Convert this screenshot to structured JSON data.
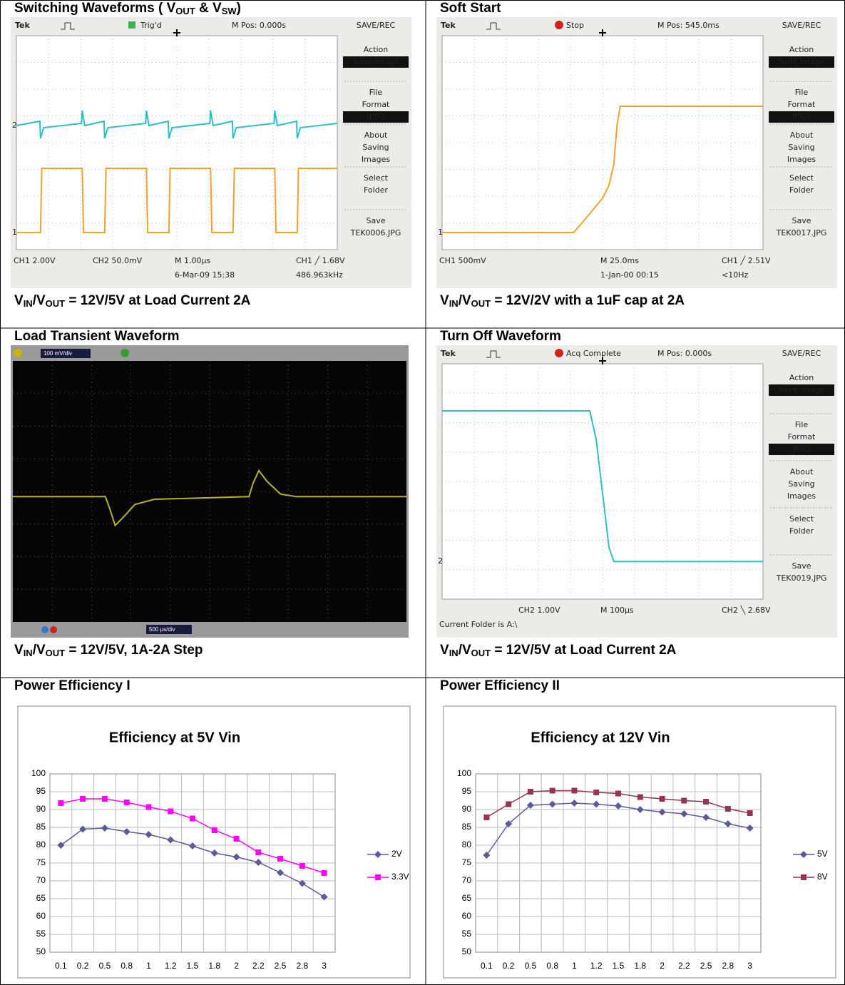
{
  "cells": [
    {
      "title": [
        "Switching Waveforms ( V",
        "OUT",
        " & V",
        "SW",
        ")"
      ],
      "caption": [
        "V",
        "IN",
        "/V",
        "OUT",
        " = 12V/5V at Load Current 2A"
      ],
      "scope": {
        "brand": "Tek",
        "status": "Trig'd",
        "mpos": "M Pos: 0.000s",
        "menu_title": "SAVE/REC",
        "menu": [
          [
            "Action",
            "Save Image"
          ],
          [
            "File",
            "Format",
            "JPEG"
          ],
          [
            "About",
            "Saving",
            "Images"
          ],
          [
            "Select",
            "Folder"
          ],
          [
            "Save",
            "TEK0006.JPG"
          ]
        ],
        "markers": [
          "2",
          "1"
        ],
        "footer": {
          "ch1": "CH1  2.00V",
          "ch2": "CH2  50.0mV",
          "timebase": "M 1.00µs",
          "date": "6-Mar-09 15:38",
          "trigger": "CH1  ╱  1.68V",
          "freq": "486.963kHz"
        }
      }
    },
    {
      "title": [
        "Soft Start"
      ],
      "caption": [
        "V",
        "IN",
        "/V",
        "OUT",
        " = 12V/2V with a 1uF cap at 2A"
      ],
      "scope": {
        "brand": "Tek",
        "status": "Stop",
        "mpos": "M Pos: 545.0ms",
        "menu_title": "SAVE/REC",
        "menu": [
          [
            "Action",
            "Save Image"
          ],
          [
            "File",
            "Format",
            "JPEG"
          ],
          [
            "About",
            "Saving",
            "Images"
          ],
          [
            "Select",
            "Folder"
          ],
          [
            "Save",
            "TEK0017.JPG"
          ]
        ],
        "markers": [
          "1"
        ],
        "footer": {
          "ch1": "CH1  500mV",
          "timebase": "M 25.0ms",
          "date": "1-Jan-00 00:15",
          "trigger": "CH1  ╱  2.51V",
          "freq": "<10Hz"
        }
      }
    },
    {
      "title": [
        "Load Transient Waveform"
      ],
      "caption": [
        "V",
        "IN",
        "/V",
        "OUT",
        " = 12V/5V, 1A-2A Step"
      ],
      "scope": {
        "volts": "100 mV/div",
        "time": "500 µs/div"
      }
    },
    {
      "title": [
        "Turn Off Waveform"
      ],
      "caption": [
        "V",
        "IN",
        "/V",
        "OUT",
        " = 12V/5V at Load Current 2A"
      ],
      "scope": {
        "brand": "Tek",
        "status": "Acq Complete",
        "mpos": "M Pos: 0.000s",
        "menu_title": "SAVE/REC",
        "menu": [
          [
            "Action",
            "Save Image"
          ],
          [
            "File",
            "Format",
            "JPEG"
          ],
          [
            "About",
            "Saving",
            "Images"
          ],
          [
            "Select",
            "Folder"
          ],
          [
            "Save",
            "TEK0019.JPG"
          ]
        ],
        "markers": [
          "2"
        ],
        "footer": {
          "ch2": "CH2  1.00V",
          "timebase": "M 100µs",
          "trigger": "CH2  ╲  2.68V",
          "folder": "Current Folder is A:\\"
        }
      }
    },
    {
      "title": [
        "Power Efficiency I"
      ],
      "chart": {
        "type": "line",
        "title": "Efficiency at 5V Vin",
        "categories": [
          "0.1",
          "0.2",
          "0.5",
          "0.8",
          "1",
          "1.2",
          "1.5",
          "1.8",
          "2",
          "2.2",
          "2.5",
          "2.8",
          "3"
        ],
        "series": [
          {
            "name": "2V",
            "color": "#5b5b9b",
            "marker": "diamond",
            "values": [
              80,
              84.5,
              84.8,
              83.8,
              83,
              81.5,
              79.8,
              77.8,
              76.7,
              75.2,
              72.3,
              69.3,
              65.5
            ]
          },
          {
            "name": "3.3V",
            "color": "#ff00ff",
            "marker": "square",
            "values": [
              91.8,
              93,
              93,
              92,
              90.7,
              89.5,
              87.5,
              84.2,
              81.8,
              78,
              76.2,
              74.2,
              72.2
            ]
          }
        ],
        "ylim": [
          50,
          100
        ],
        "yticks": [
          50,
          55,
          60,
          65,
          70,
          75,
          80,
          85,
          90,
          95,
          100
        ],
        "grid": true,
        "legend": "right"
      }
    },
    {
      "title": [
        "Power Efficiency II"
      ],
      "chart": {
        "type": "line",
        "title": "Efficiency at 12V Vin",
        "categories": [
          "0.1",
          "0.2",
          "0.5",
          "0.8",
          "1",
          "1.2",
          "1.5",
          "1.8",
          "2",
          "2.2",
          "2.5",
          "2.8",
          "3"
        ],
        "series": [
          {
            "name": "5V",
            "color": "#5b5b9b",
            "marker": "diamond",
            "values": [
              77.2,
              86,
              91.2,
              91.5,
              91.8,
              91.5,
              91,
              90,
              89.3,
              88.8,
              87.8,
              86,
              84.8
            ]
          },
          {
            "name": "8V",
            "color": "#953553",
            "marker": "square",
            "values": [
              87.8,
              91.5,
              95,
              95.3,
              95.3,
              94.8,
              94.5,
              93.5,
              93,
              92.5,
              92.2,
              90.2,
              89
            ]
          }
        ],
        "ylim": [
          50,
          100
        ],
        "yticks": [
          50,
          55,
          60,
          65,
          70,
          75,
          80,
          85,
          90,
          95,
          100
        ],
        "grid": true,
        "legend": "right"
      }
    }
  ]
}
